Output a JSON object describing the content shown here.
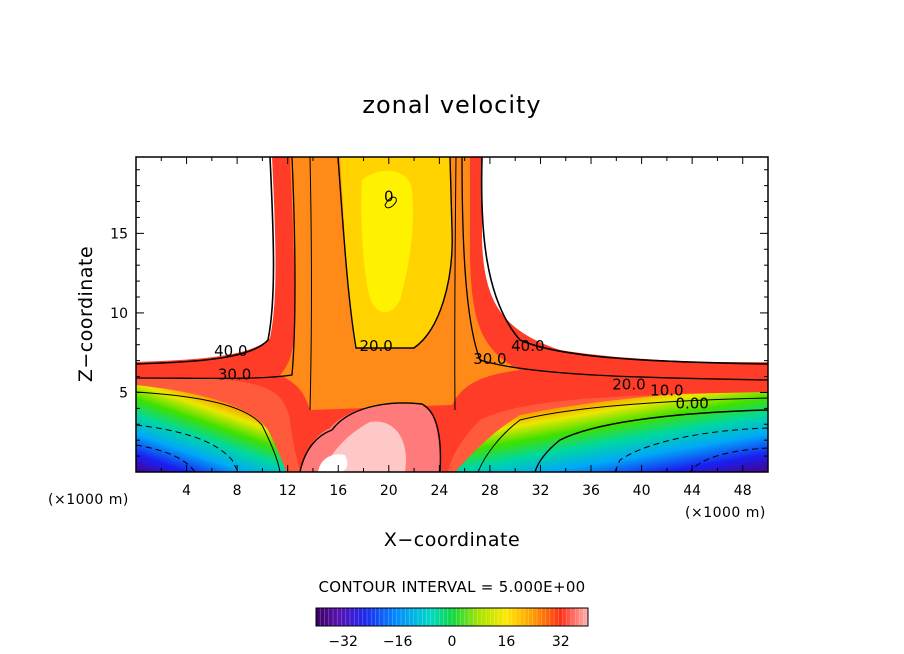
{
  "chart_data": {
    "type": "heatmap",
    "title": "zonal velocity",
    "xlabel": "X−coordinate",
    "ylabel": "Z−coordinate",
    "x_unit_left": "(×1000 m)",
    "x_unit_right": "(×1000 m)",
    "xlim": [
      0,
      50
    ],
    "ylim": [
      0,
      19.8
    ],
    "x_ticks": [
      4,
      8,
      12,
      16,
      20,
      24,
      28,
      32,
      36,
      40,
      44,
      48
    ],
    "y_ticks": [
      5,
      10,
      15
    ],
    "contour_interval_label": "CONTOUR INTERVAL = 5.000E+00",
    "contour_labels": [
      {
        "text": "40.0",
        "x": 7.5,
        "z": 7.3
      },
      {
        "text": "30.0",
        "x": 7.8,
        "z": 5.8
      },
      {
        "text": "20.0",
        "x": 19.0,
        "z": 7.6
      },
      {
        "text": "30.0",
        "x": 28.0,
        "z": 6.8
      },
      {
        "text": "40.0",
        "x": 31.0,
        "z": 7.6
      },
      {
        "text": "20.0",
        "x": 39.0,
        "z": 5.2
      },
      {
        "text": "10.0",
        "x": 42.0,
        "z": 4.8
      },
      {
        "text": "0.00",
        "x": 44.0,
        "z": 4.0
      },
      {
        "text": "0",
        "x": 20.0,
        "z": 17.0
      }
    ],
    "colorbar": {
      "range": [
        -40,
        40
      ],
      "ticks": [
        "−32",
        "−16",
        "0",
        "16",
        "32"
      ],
      "tick_values": [
        -32,
        -16,
        0,
        16,
        32
      ]
    },
    "grid": false,
    "legend": "none"
  }
}
